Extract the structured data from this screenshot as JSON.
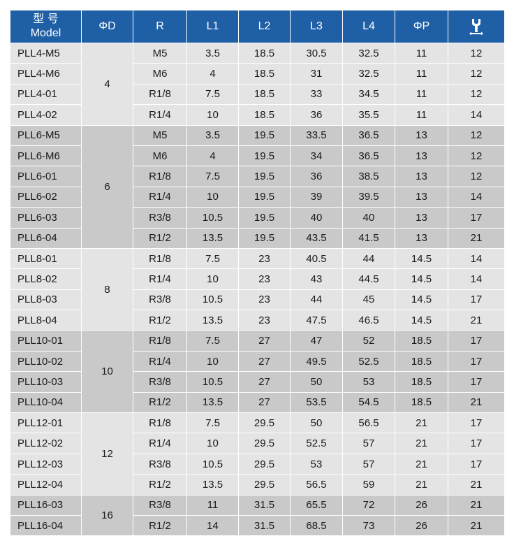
{
  "header": {
    "model_line1": "型 号",
    "model_line2": "Model",
    "od": "ΦD",
    "r": "R",
    "l1": "L1",
    "l2": "L2",
    "l3": "L3",
    "l4": "L4",
    "op": "ΦP",
    "wrench_icon": "wrench-size-icon"
  },
  "colors": {
    "header_bg": "#1f5fa6",
    "group_light": "#e4e4e4",
    "group_dark": "#c9c9c9"
  },
  "groups": [
    {
      "od": "4",
      "rows": [
        {
          "model": "PLL4-M5",
          "r": "M5",
          "l1": "3.5",
          "l2": "18.5",
          "l3": "30.5",
          "l4": "32.5",
          "p": "11",
          "w": "12"
        },
        {
          "model": "PLL4-M6",
          "r": "M6",
          "l1": "4",
          "l2": "18.5",
          "l3": "31",
          "l4": "32.5",
          "p": "11",
          "w": "12"
        },
        {
          "model": "PLL4-01",
          "r": "R1/8",
          "l1": "7.5",
          "l2": "18.5",
          "l3": "33",
          "l4": "34.5",
          "p": "11",
          "w": "12"
        },
        {
          "model": "PLL4-02",
          "r": "R1/4",
          "l1": "10",
          "l2": "18.5",
          "l3": "36",
          "l4": "35.5",
          "p": "11",
          "w": "14"
        }
      ]
    },
    {
      "od": "6",
      "rows": [
        {
          "model": "PLL6-M5",
          "r": "M5",
          "l1": "3.5",
          "l2": "19.5",
          "l3": "33.5",
          "l4": "36.5",
          "p": "13",
          "w": "12"
        },
        {
          "model": "PLL6-M6",
          "r": "M6",
          "l1": "4",
          "l2": "19.5",
          "l3": "34",
          "l4": "36.5",
          "p": "13",
          "w": "12"
        },
        {
          "model": "PLL6-01",
          "r": "R1/8",
          "l1": "7.5",
          "l2": "19.5",
          "l3": "36",
          "l4": "38.5",
          "p": "13",
          "w": "12"
        },
        {
          "model": "PLL6-02",
          "r": "R1/4",
          "l1": "10",
          "l2": "19.5",
          "l3": "39",
          "l4": "39.5",
          "p": "13",
          "w": "14"
        },
        {
          "model": "PLL6-03",
          "r": "R3/8",
          "l1": "10.5",
          "l2": "19.5",
          "l3": "40",
          "l4": "40",
          "p": "13",
          "w": "17"
        },
        {
          "model": "PLL6-04",
          "r": "R1/2",
          "l1": "13.5",
          "l2": "19.5",
          "l3": "43.5",
          "l4": "41.5",
          "p": "13",
          "w": "21"
        }
      ]
    },
    {
      "od": "8",
      "rows": [
        {
          "model": "PLL8-01",
          "r": "R1/8",
          "l1": "7.5",
          "l2": "23",
          "l3": "40.5",
          "l4": "44",
          "p": "14.5",
          "w": "14"
        },
        {
          "model": "PLL8-02",
          "r": "R1/4",
          "l1": "10",
          "l2": "23",
          "l3": "43",
          "l4": "44.5",
          "p": "14.5",
          "w": "14"
        },
        {
          "model": "PLL8-03",
          "r": "R3/8",
          "l1": "10.5",
          "l2": "23",
          "l3": "44",
          "l4": "45",
          "p": "14.5",
          "w": "17"
        },
        {
          "model": "PLL8-04",
          "r": "R1/2",
          "l1": "13.5",
          "l2": "23",
          "l3": "47.5",
          "l4": "46.5",
          "p": "14.5",
          "w": "21"
        }
      ]
    },
    {
      "od": "10",
      "rows": [
        {
          "model": "PLL10-01",
          "r": "R1/8",
          "l1": "7.5",
          "l2": "27",
          "l3": "47",
          "l4": "52",
          "p": "18.5",
          "w": "17"
        },
        {
          "model": "PLL10-02",
          "r": "R1/4",
          "l1": "10",
          "l2": "27",
          "l3": "49.5",
          "l4": "52.5",
          "p": "18.5",
          "w": "17"
        },
        {
          "model": "PLL10-03",
          "r": "R3/8",
          "l1": "10.5",
          "l2": "27",
          "l3": "50",
          "l4": "53",
          "p": "18.5",
          "w": "17"
        },
        {
          "model": "PLL10-04",
          "r": "R1/2",
          "l1": "13.5",
          "l2": "27",
          "l3": "53.5",
          "l4": "54.5",
          "p": "18.5",
          "w": "21"
        }
      ]
    },
    {
      "od": "12",
      "rows": [
        {
          "model": "PLL12-01",
          "r": "R1/8",
          "l1": "7.5",
          "l2": "29.5",
          "l3": "50",
          "l4": "56.5",
          "p": "21",
          "w": "17"
        },
        {
          "model": "PLL12-02",
          "r": "R1/4",
          "l1": "10",
          "l2": "29.5",
          "l3": "52.5",
          "l4": "57",
          "p": "21",
          "w": "17"
        },
        {
          "model": "PLL12-03",
          "r": "R3/8",
          "l1": "10.5",
          "l2": "29.5",
          "l3": "53",
          "l4": "57",
          "p": "21",
          "w": "17"
        },
        {
          "model": "PLL12-04",
          "r": "R1/2",
          "l1": "13.5",
          "l2": "29.5",
          "l3": "56.5",
          "l4": "59",
          "p": "21",
          "w": "21"
        }
      ]
    },
    {
      "od": "16",
      "rows": [
        {
          "model": "PLL16-03",
          "r": "R3/8",
          "l1": "11",
          "l2": "31.5",
          "l3": "65.5",
          "l4": "72",
          "p": "26",
          "w": "21"
        },
        {
          "model": "PLL16-04",
          "r": "R1/2",
          "l1": "14",
          "l2": "31.5",
          "l3": "68.5",
          "l4": "73",
          "p": "26",
          "w": "21"
        }
      ]
    }
  ]
}
